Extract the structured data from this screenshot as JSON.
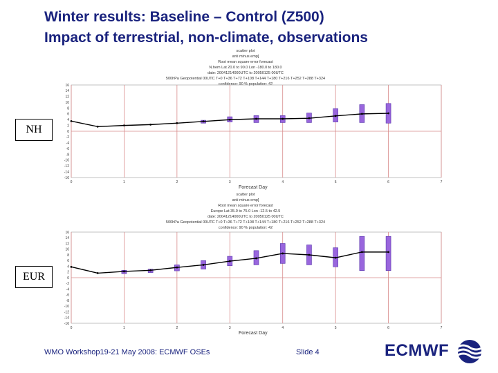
{
  "slide": {
    "title_line1": "Winter results: Baseline – Control (Z500)",
    "title_line2": "Impact of terrestrial, non-climate, observations",
    "footer_left": "WMO Workshop19-21 May 2008: ECMWF OSEs",
    "footer_slide": "Slide 4",
    "logo_text": "ECMWF",
    "title_color": "#1a237e"
  },
  "chart_data": [
    {
      "type": "line",
      "panel_label": "NH",
      "header_lines": [
        "scatter plot",
        "anti minus emp]",
        "Root mean square error forecast",
        "N.hem Lat 20.0 to 90.0 Lon -180.0 to 180.0",
        "date: 20041214000UTC to 20050125 00UTC",
        "500hPa Geopotential 00UTC T+0 T+36 T+72 T+108 T+144 T+180 T+216 T+252 T+288 T+324",
        "confidence: 90 % population: 42"
      ],
      "xlabel": "Forecast Day",
      "x_ticks": [
        0,
        1,
        2,
        3,
        4,
        5,
        6,
        7
      ],
      "y_ticks": [
        16,
        14,
        12,
        10,
        8,
        6,
        4,
        2,
        0,
        -2,
        -4,
        -6,
        -8,
        -10,
        -12,
        -14,
        -16
      ],
      "xlim": [
        0,
        7
      ],
      "ylim": [
        -16,
        16
      ],
      "series": [
        {
          "x": [
            0,
            0.5,
            1,
            1.5,
            2,
            2.5,
            3,
            3.5,
            4,
            4.5,
            5,
            5.5,
            6
          ],
          "values": [
            3.5,
            1.6,
            2.0,
            2.3,
            2.8,
            3.4,
            4.0,
            4.3,
            4.3,
            4.5,
            5.3,
            6.0,
            6.2
          ],
          "err_low": [
            null,
            null,
            null,
            null,
            null,
            2.8,
            3.2,
            3.0,
            3.0,
            3.0,
            3.2,
            3.0,
            2.8
          ],
          "err_high": [
            null,
            null,
            null,
            null,
            null,
            3.8,
            5.0,
            5.4,
            5.4,
            6.3,
            7.8,
            9.2,
            9.6
          ]
        }
      ],
      "line_color": "#000000",
      "bar_color": "#9966dd"
    },
    {
      "type": "line",
      "panel_label": "EUR",
      "header_lines": [
        "scatter plot",
        "anti minus emp]",
        "Root mean square error forecast",
        "Europe Lat 35.0 to 75.0 Lon -12.5 to 42.5",
        "date: 20041214000UTC to 20050125 00UTC",
        "500hPa Geopotential 00UTC T+0 T+36 T+72 T+108 T+144 T+180 T+216 T+252 T+288 T+324",
        "confidence: 90 % population: 42"
      ],
      "xlabel": "Forecast Day",
      "x_ticks": [
        0,
        1,
        2,
        3,
        4,
        5,
        6,
        7
      ],
      "y_ticks": [
        16,
        14,
        12,
        10,
        8,
        6,
        4,
        2,
        0,
        -2,
        -4,
        -6,
        -8,
        -10,
        -12,
        -14,
        -16
      ],
      "xlim": [
        0,
        7
      ],
      "ylim": [
        -16,
        16
      ],
      "series": [
        {
          "x": [
            0,
            0.5,
            1,
            1.5,
            2,
            2.5,
            3,
            3.5,
            4,
            4.5,
            5,
            5.5,
            6
          ],
          "values": [
            3.8,
            1.6,
            2.2,
            2.6,
            3.6,
            4.5,
            5.8,
            6.8,
            8.5,
            8.0,
            7.0,
            9.0,
            9.0
          ],
          "err_low": [
            null,
            null,
            1.4,
            1.8,
            2.4,
            3.0,
            4.2,
            4.5,
            5.0,
            4.5,
            3.8,
            2.5,
            2.5
          ],
          "err_high": [
            null,
            null,
            2.6,
            3.0,
            4.5,
            6.0,
            7.5,
            9.5,
            12.0,
            11.5,
            10.5,
            14.5,
            14.5
          ]
        }
      ],
      "line_color": "#000000",
      "bar_color": "#9966dd"
    }
  ]
}
